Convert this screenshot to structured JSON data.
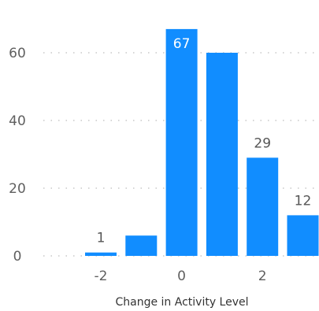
{
  "chart_data": {
    "type": "bar",
    "title": "",
    "xlabel": "Change in Activity Level",
    "ylabel": "",
    "x": [
      -2,
      -1,
      0,
      1,
      2,
      3
    ],
    "values": [
      1,
      6,
      67,
      60,
      29,
      12
    ],
    "data_labels": [
      "1",
      "",
      "67",
      "",
      "29",
      "12"
    ],
    "x_tick_labels": [
      "-2",
      "0",
      "2"
    ],
    "y_tick_labels": [
      "0",
      "20",
      "40",
      "60"
    ],
    "y_ticks": [
      0,
      20,
      40,
      60
    ],
    "x_ticks": [
      -2,
      0,
      2
    ],
    "ylim": [
      0,
      70
    ],
    "grid": true,
    "bar_color": "#118DFF"
  }
}
